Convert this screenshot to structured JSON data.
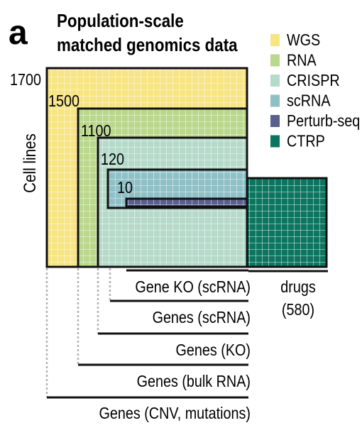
{
  "panel_letter": "a",
  "title": {
    "line1": "Population-scale",
    "line2": "matched genomics data"
  },
  "y_axis_label": "Cell lines",
  "legend": [
    {
      "label": "WGS",
      "color": "#f7e483"
    },
    {
      "label": "RNA",
      "color": "#b9d88c"
    },
    {
      "label": "CRISPR",
      "color": "#b5dac9"
    },
    {
      "label": "scRNA",
      "color": "#8fc0c6"
    },
    {
      "label": "Perturb-seq",
      "color": "#5a5f8e"
    },
    {
      "label": "CTRP",
      "color": "#0c7560"
    }
  ],
  "block_counts": [
    {
      "key": "WGS",
      "value": "1700"
    },
    {
      "key": "RNA",
      "value": "1500"
    },
    {
      "key": "CRISPR",
      "value": "1100"
    },
    {
      "key": "scRNA",
      "value": "120"
    },
    {
      "key": "Perturb-seq",
      "value": "10"
    }
  ],
  "feature_labels": [
    "Gene KO (scRNA)",
    "Genes (scRNA)",
    "Genes (KO)",
    "Genes (bulk RNA)",
    "Genes (CNV, mutations)"
  ],
  "drugs_label": {
    "line1": "drugs",
    "line2": "(580)"
  }
}
